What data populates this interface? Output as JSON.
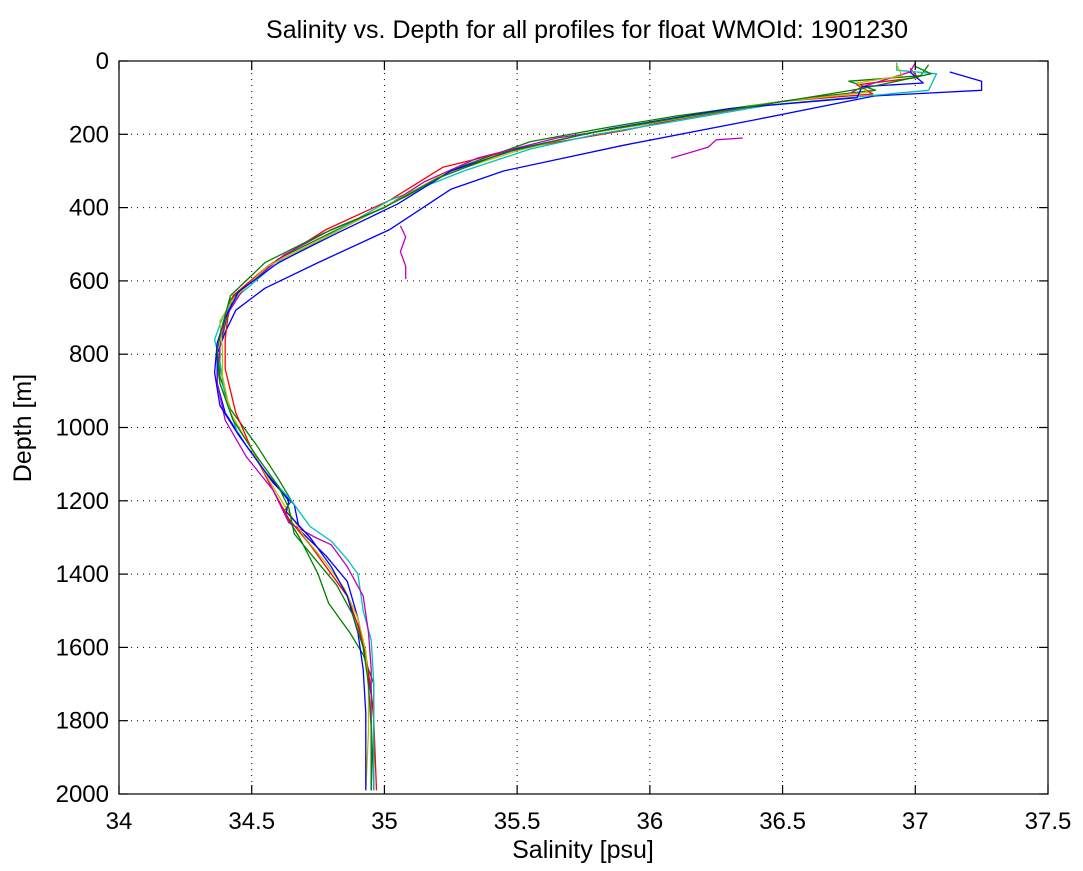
{
  "chart_data": {
    "type": "line",
    "title": "Salinity vs. Depth for all profiles for float WMOId: 1901230",
    "xlabel": "Salinity [psu]",
    "ylabel": "Depth [m]",
    "xlim": [
      34,
      37.5
    ],
    "ylim": [
      0,
      2000
    ],
    "y_reversed": true,
    "grid": true,
    "xticks": [
      34,
      34.5,
      35,
      35.5,
      36,
      36.5,
      37,
      37.5
    ],
    "xtick_labels": [
      "34",
      "34.5",
      "35",
      "35.5",
      "36",
      "36.5",
      "37",
      "37.5"
    ],
    "yticks": [
      0,
      200,
      400,
      600,
      800,
      1000,
      1200,
      1400,
      1600,
      1800,
      2000
    ],
    "ytick_labels": [
      "0",
      "200",
      "400",
      "600",
      "800",
      "1000",
      "1200",
      "1400",
      "1600",
      "1800",
      "2000"
    ],
    "series": [
      {
        "color": "#0000ff",
        "points": [
          [
            37.13,
            30
          ],
          [
            37.25,
            55
          ],
          [
            37.25,
            80
          ],
          [
            36.85,
            95
          ],
          [
            36.4,
            160
          ],
          [
            35.9,
            230
          ],
          [
            35.45,
            300
          ],
          [
            35.25,
            350
          ],
          [
            35.02,
            460
          ],
          [
            34.75,
            550
          ],
          [
            34.55,
            620
          ],
          [
            34.44,
            680
          ],
          [
            34.4,
            740
          ],
          [
            34.37,
            800
          ],
          [
            34.37,
            880
          ],
          [
            34.4,
            960
          ],
          [
            34.48,
            1050
          ],
          [
            34.58,
            1150
          ],
          [
            34.66,
            1210
          ],
          [
            34.68,
            1280
          ],
          [
            34.78,
            1350
          ],
          [
            34.86,
            1420
          ],
          [
            34.9,
            1520
          ],
          [
            34.92,
            1600
          ],
          [
            34.94,
            1680
          ],
          [
            34.96,
            1780
          ],
          [
            34.96,
            1990
          ]
        ]
      },
      {
        "color": "#008000",
        "points": [
          [
            37.05,
            10
          ],
          [
            37.02,
            40
          ],
          [
            36.75,
            55
          ],
          [
            36.85,
            80
          ],
          [
            36.6,
            100
          ],
          [
            36.1,
            150
          ],
          [
            35.85,
            180
          ],
          [
            35.55,
            220
          ],
          [
            35.28,
            290
          ],
          [
            35.08,
            370
          ],
          [
            34.85,
            450
          ],
          [
            34.6,
            540
          ],
          [
            34.42,
            650
          ],
          [
            34.4,
            720
          ],
          [
            34.38,
            780
          ],
          [
            34.38,
            860
          ],
          [
            34.42,
            950
          ],
          [
            34.52,
            1050
          ],
          [
            34.6,
            1140
          ],
          [
            34.65,
            1200
          ],
          [
            34.62,
            1230
          ],
          [
            34.68,
            1300
          ],
          [
            34.75,
            1400
          ],
          [
            34.79,
            1480
          ],
          [
            34.87,
            1560
          ],
          [
            34.92,
            1620
          ],
          [
            34.96,
            1700
          ],
          [
            34.96,
            1800
          ],
          [
            34.95,
            1990
          ]
        ]
      },
      {
        "color": "#ff0000",
        "points": [
          [
            36.98,
            20
          ],
          [
            37.01,
            45
          ],
          [
            36.78,
            65
          ],
          [
            36.84,
            90
          ],
          [
            36.5,
            110
          ],
          [
            36.1,
            160
          ],
          [
            35.9,
            190
          ],
          [
            35.5,
            240
          ],
          [
            35.22,
            290
          ],
          [
            35.02,
            380
          ],
          [
            34.78,
            460
          ],
          [
            34.56,
            560
          ],
          [
            34.43,
            640
          ],
          [
            34.41,
            700
          ],
          [
            34.4,
            760
          ],
          [
            34.4,
            840
          ],
          [
            34.44,
            960
          ],
          [
            34.5,
            1060
          ],
          [
            34.58,
            1170
          ],
          [
            34.64,
            1250
          ],
          [
            34.72,
            1320
          ],
          [
            34.78,
            1380
          ],
          [
            34.86,
            1460
          ],
          [
            34.9,
            1540
          ],
          [
            34.93,
            1620
          ],
          [
            34.95,
            1720
          ],
          [
            34.96,
            1800
          ],
          [
            34.97,
            1990
          ]
        ]
      },
      {
        "color": "#00bfbf",
        "points": [
          [
            36.93,
            5
          ],
          [
            36.93,
            25
          ],
          [
            37.08,
            35
          ],
          [
            37.05,
            80
          ],
          [
            36.45,
            120
          ],
          [
            36.05,
            170
          ],
          [
            35.8,
            200
          ],
          [
            35.55,
            240
          ],
          [
            35.3,
            300
          ],
          [
            35.02,
            380
          ],
          [
            34.78,
            480
          ],
          [
            34.58,
            560
          ],
          [
            34.45,
            640
          ],
          [
            34.39,
            700
          ],
          [
            34.36,
            760
          ],
          [
            34.38,
            820
          ],
          [
            34.4,
            920
          ],
          [
            34.45,
            1020
          ],
          [
            34.55,
            1120
          ],
          [
            34.65,
            1200
          ],
          [
            34.72,
            1270
          ],
          [
            34.8,
            1310
          ],
          [
            34.86,
            1360
          ],
          [
            34.9,
            1400
          ],
          [
            34.92,
            1500
          ],
          [
            34.95,
            1580
          ],
          [
            34.96,
            1700
          ],
          [
            34.96,
            1800
          ],
          [
            34.96,
            1990
          ]
        ]
      },
      {
        "color": "#bf00bf",
        "points": [
          [
            37.0,
            5
          ],
          [
            36.98,
            30
          ],
          [
            36.8,
            70
          ],
          [
            36.75,
            90
          ],
          [
            36.5,
            110
          ],
          [
            36.05,
            165
          ],
          [
            35.65,
            210
          ],
          [
            35.35,
            265
          ],
          [
            35.15,
            330
          ],
          [
            35.0,
            400
          ],
          [
            34.8,
            460
          ],
          [
            34.62,
            530
          ],
          [
            34.47,
            620
          ],
          [
            34.4,
            700
          ],
          [
            34.38,
            780
          ],
          [
            34.37,
            880
          ],
          [
            34.4,
            980
          ],
          [
            34.48,
            1080
          ],
          [
            34.58,
            1170
          ],
          [
            34.64,
            1260
          ],
          [
            34.74,
            1300
          ],
          [
            34.8,
            1320
          ],
          [
            34.86,
            1380
          ],
          [
            34.92,
            1460
          ],
          [
            34.94,
            1560
          ],
          [
            34.95,
            1660
          ],
          [
            34.95,
            1780
          ],
          [
            34.95,
            1990
          ]
        ]
      },
      {
        "color": "#bfbf00",
        "points": [
          [
            36.93,
            10
          ],
          [
            36.95,
            40
          ],
          [
            36.78,
            60
          ],
          [
            36.82,
            85
          ],
          [
            36.45,
            115
          ],
          [
            36.0,
            170
          ],
          [
            35.75,
            200
          ],
          [
            35.5,
            245
          ],
          [
            35.22,
            310
          ],
          [
            35.02,
            390
          ],
          [
            34.78,
            480
          ],
          [
            34.56,
            560
          ],
          [
            34.43,
            650
          ],
          [
            34.38,
            710
          ],
          [
            34.39,
            790
          ],
          [
            34.39,
            860
          ],
          [
            34.42,
            960
          ],
          [
            34.5,
            1060
          ],
          [
            34.57,
            1150
          ],
          [
            34.63,
            1220
          ],
          [
            34.7,
            1300
          ],
          [
            34.78,
            1370
          ],
          [
            34.85,
            1440
          ],
          [
            34.9,
            1520
          ],
          [
            34.93,
            1610
          ],
          [
            34.94,
            1720
          ],
          [
            34.94,
            1830
          ],
          [
            34.93,
            1990
          ]
        ]
      },
      {
        "color": "#0000ff",
        "points": [
          [
            36.98,
            30
          ],
          [
            37.03,
            60
          ],
          [
            36.8,
            70
          ],
          [
            36.78,
            100
          ],
          [
            36.3,
            130
          ],
          [
            35.85,
            185
          ],
          [
            35.5,
            240
          ],
          [
            35.25,
            300
          ],
          [
            35.05,
            390
          ],
          [
            34.82,
            470
          ],
          [
            34.6,
            550
          ],
          [
            34.45,
            630
          ],
          [
            34.4,
            700
          ],
          [
            34.37,
            770
          ],
          [
            34.36,
            850
          ],
          [
            34.38,
            940
          ],
          [
            34.45,
            1020
          ],
          [
            34.55,
            1120
          ],
          [
            34.64,
            1200
          ],
          [
            34.63,
            1230
          ],
          [
            34.72,
            1300
          ],
          [
            34.8,
            1380
          ],
          [
            34.86,
            1460
          ],
          [
            34.9,
            1560
          ],
          [
            34.92,
            1660
          ],
          [
            34.93,
            1780
          ],
          [
            34.93,
            1990
          ]
        ]
      },
      {
        "color": "#008000",
        "points": [
          [
            37.0,
            15
          ],
          [
            37.06,
            35
          ],
          [
            36.9,
            60
          ],
          [
            36.8,
            75
          ],
          [
            36.55,
            105
          ],
          [
            36.15,
            150
          ],
          [
            35.78,
            195
          ],
          [
            35.45,
            250
          ],
          [
            35.2,
            320
          ],
          [
            35.0,
            400
          ],
          [
            34.77,
            470
          ],
          [
            34.55,
            550
          ],
          [
            34.42,
            640
          ],
          [
            34.39,
            720
          ],
          [
            34.37,
            790
          ],
          [
            34.38,
            880
          ],
          [
            34.43,
            980
          ],
          [
            34.52,
            1080
          ],
          [
            34.6,
            1160
          ],
          [
            34.64,
            1220
          ],
          [
            34.66,
            1290
          ],
          [
            34.74,
            1360
          ],
          [
            34.82,
            1430
          ],
          [
            34.88,
            1510
          ],
          [
            34.92,
            1600
          ],
          [
            34.94,
            1700
          ],
          [
            34.95,
            1820
          ],
          [
            34.95,
            1990
          ]
        ]
      },
      {
        "color": "#bf00bf",
        "points": [
          [
            36.35,
            210
          ],
          [
            36.25,
            215
          ],
          [
            36.22,
            235
          ],
          [
            36.08,
            265
          ]
        ]
      },
      {
        "color": "#bf00bf",
        "points": [
          [
            35.06,
            450
          ],
          [
            35.08,
            480
          ],
          [
            35.06,
            520
          ],
          [
            35.08,
            560
          ],
          [
            35.08,
            595
          ]
        ]
      }
    ]
  }
}
